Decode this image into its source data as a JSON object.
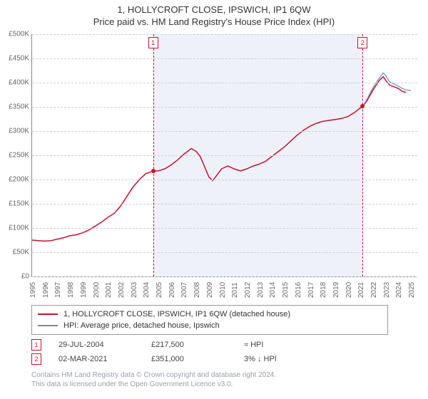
{
  "title": "1, HOLLYCROFT CLOSE, IPSWICH, IP1 6QW",
  "subtitle": "Price paid vs. HM Land Registry's House Price Index (HPI)",
  "chart": {
    "type": "line",
    "xlim": [
      1995,
      2025.5
    ],
    "ylim": [
      0,
      500000
    ],
    "ytick_step": 50000,
    "yticks_fmt": [
      "£0",
      "£50K",
      "£100K",
      "£150K",
      "£200K",
      "£250K",
      "£300K",
      "£350K",
      "£400K",
      "£450K",
      "£500K"
    ],
    "xticks": [
      1995,
      1996,
      1997,
      1998,
      1999,
      2000,
      2001,
      2002,
      2003,
      2004,
      2005,
      2006,
      2007,
      2008,
      2009,
      2010,
      2011,
      2012,
      2013,
      2014,
      2015,
      2016,
      2017,
      2018,
      2019,
      2020,
      2021,
      2022,
      2023,
      2024,
      2025
    ],
    "background_color": "#ffffff",
    "grid_color": "#c8d0dc",
    "shade_color": "#eef2f8",
    "shade_ranges": [
      [
        2004.58,
        2021.17
      ]
    ],
    "series": [
      {
        "name": "property",
        "label": "1, HOLLYCROFT CLOSE, IPSWICH, IP1 6QW (detached house)",
        "color": "#c8102e",
        "line_width": 1.5,
        "points": [
          [
            1995.0,
            75000
          ],
          [
            1995.5,
            74000
          ],
          [
            1996.0,
            73000
          ],
          [
            1996.5,
            74000
          ],
          [
            1997.0,
            77000
          ],
          [
            1997.5,
            80000
          ],
          [
            1998.0,
            84000
          ],
          [
            1998.5,
            86000
          ],
          [
            1999.0,
            90000
          ],
          [
            1999.5,
            96000
          ],
          [
            2000.0,
            104000
          ],
          [
            2000.5,
            112000
          ],
          [
            2001.0,
            122000
          ],
          [
            2001.5,
            130000
          ],
          [
            2002.0,
            145000
          ],
          [
            2002.5,
            165000
          ],
          [
            2003.0,
            185000
          ],
          [
            2003.5,
            200000
          ],
          [
            2004.0,
            212000
          ],
          [
            2004.58,
            217500
          ],
          [
            2005.0,
            218000
          ],
          [
            2005.5,
            222000
          ],
          [
            2006.0,
            230000
          ],
          [
            2006.5,
            240000
          ],
          [
            2007.0,
            252000
          ],
          [
            2007.3,
            258000
          ],
          [
            2007.6,
            264000
          ],
          [
            2008.0,
            258000
          ],
          [
            2008.3,
            248000
          ],
          [
            2008.6,
            230000
          ],
          [
            2009.0,
            205000
          ],
          [
            2009.3,
            198000
          ],
          [
            2009.6,
            208000
          ],
          [
            2010.0,
            222000
          ],
          [
            2010.5,
            228000
          ],
          [
            2011.0,
            222000
          ],
          [
            2011.5,
            218000
          ],
          [
            2012.0,
            222000
          ],
          [
            2012.5,
            228000
          ],
          [
            2013.0,
            232000
          ],
          [
            2013.5,
            238000
          ],
          [
            2014.0,
            248000
          ],
          [
            2014.5,
            258000
          ],
          [
            2015.0,
            268000
          ],
          [
            2015.5,
            280000
          ],
          [
            2016.0,
            292000
          ],
          [
            2016.5,
            302000
          ],
          [
            2017.0,
            310000
          ],
          [
            2017.5,
            316000
          ],
          [
            2018.0,
            320000
          ],
          [
            2018.5,
            322000
          ],
          [
            2019.0,
            324000
          ],
          [
            2019.5,
            326000
          ],
          [
            2020.0,
            330000
          ],
          [
            2020.5,
            338000
          ],
          [
            2021.0,
            348000
          ],
          [
            2021.17,
            351000
          ],
          [
            2021.5,
            362000
          ],
          [
            2022.0,
            385000
          ],
          [
            2022.5,
            405000
          ],
          [
            2022.8,
            412000
          ],
          [
            2023.0,
            405000
          ],
          [
            2023.3,
            395000
          ],
          [
            2023.6,
            392000
          ],
          [
            2024.0,
            388000
          ],
          [
            2024.3,
            382000
          ],
          [
            2024.6,
            380000
          ]
        ]
      },
      {
        "name": "hpi",
        "label": "HPI: Average price, detached house, Ipswich",
        "color": "#5b8fd6",
        "line_width": 1.2,
        "points": [
          [
            2021.17,
            351000
          ],
          [
            2021.5,
            365000
          ],
          [
            2022.0,
            390000
          ],
          [
            2022.5,
            410000
          ],
          [
            2022.8,
            420000
          ],
          [
            2023.0,
            415000
          ],
          [
            2023.3,
            402000
          ],
          [
            2023.6,
            398000
          ],
          [
            2024.0,
            393000
          ],
          [
            2024.3,
            388000
          ],
          [
            2024.6,
            385000
          ],
          [
            2025.0,
            384000
          ]
        ]
      }
    ],
    "sale_markers": [
      {
        "n": "1",
        "x": 2004.58,
        "y": 217500,
        "color": "#c8102e"
      },
      {
        "n": "2",
        "x": 2021.17,
        "y": 351000,
        "color": "#c8102e"
      }
    ]
  },
  "legend": {
    "rows": [
      {
        "color": "#c8102e",
        "label": "1, HOLLYCROFT CLOSE, IPSWICH, IP1 6QW (detached house)"
      },
      {
        "color": "#5b8fd6",
        "label": "HPI: Average price, detached house, Ipswich"
      }
    ]
  },
  "sales": [
    {
      "n": "1",
      "color": "#c8102e",
      "date": "29-JUL-2004",
      "price": "£217,500",
      "delta": "≈ HPI"
    },
    {
      "n": "2",
      "color": "#c8102e",
      "date": "02-MAR-2021",
      "price": "£351,000",
      "delta": "3% ↓ HPI"
    }
  ],
  "footer_line1": "Contains HM Land Registry data © Crown copyright and database right 2024.",
  "footer_line2": "This data is licensed under the Open Government Licence v3.0."
}
